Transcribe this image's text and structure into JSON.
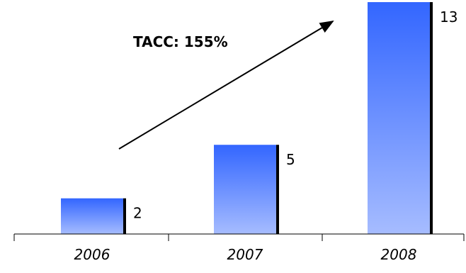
{
  "chart_data": {
    "type": "bar",
    "categories": [
      "2006",
      "2007",
      "2008"
    ],
    "values": [
      2,
      5,
      13
    ],
    "title": "",
    "xlabel": "",
    "ylabel": "",
    "ylim": [
      0,
      13
    ],
    "grid": false,
    "legend": "none",
    "data_labels": true,
    "annotation": "TACC: 155%",
    "colors": {
      "bar_top": "#3366ff",
      "bar_bottom": "#a6bcff",
      "bar_shadow": "#000000",
      "axis": "#000000"
    }
  }
}
